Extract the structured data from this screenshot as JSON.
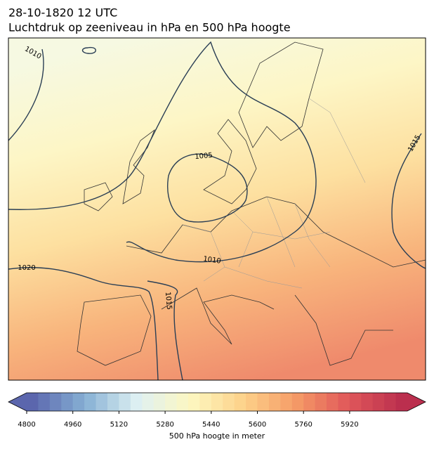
{
  "header": {
    "date": "28-10-1820 12 UTC",
    "title": "Luchtdruk op zeeniveau in hPa en 500 hPa hoogte"
  },
  "map": {
    "isobar_labels": [
      1010,
      1005,
      1015,
      1020,
      1010,
      1015
    ]
  },
  "colorbar": {
    "label": "500 hPa hoogte in meter",
    "clim": [
      4800,
      6120
    ],
    "ticks": [
      4800,
      4960,
      5120,
      5280,
      5440,
      5600,
      5760,
      5920
    ],
    "colormap": [
      "#5b66ad",
      "#86b0d4",
      "#dff1f3",
      "#fdf7c0",
      "#fdd28a",
      "#f59a66",
      "#e0575a",
      "#bb2f4e"
    ]
  }
}
